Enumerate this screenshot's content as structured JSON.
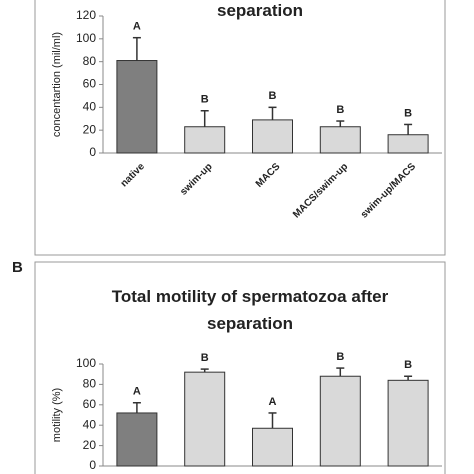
{
  "chart_data": [
    {
      "type": "bar",
      "title": "separation",
      "y_label": "concentartion (mil/ml)",
      "categories": [
        "native",
        "swim-up",
        "MACS",
        "MACS/swim-up",
        "swim-up/MACS"
      ],
      "values": [
        81,
        23,
        29,
        23,
        16
      ],
      "errors": [
        20,
        14,
        11,
        5,
        9
      ],
      "annotations": [
        "A",
        "B",
        "B",
        "B",
        "B"
      ],
      "colors": [
        "#7f7f7f",
        "#d9d9d9",
        "#d9d9d9",
        "#d9d9d9",
        "#d9d9d9"
      ],
      "ylim": [
        0,
        120
      ],
      "yticks": [
        0,
        20,
        40,
        60,
        80,
        100,
        120
      ]
    },
    {
      "type": "bar",
      "panel_label": "B",
      "title": "Total motility  of spermatozoa after separation",
      "y_label": "motility (%)",
      "categories": [
        null,
        null,
        null,
        null,
        null
      ],
      "values": [
        52,
        92,
        37,
        88,
        84
      ],
      "errors": [
        10,
        3,
        15,
        8,
        4
      ],
      "annotations": [
        "A",
        "B",
        "A",
        "B",
        "B"
      ],
      "colors": [
        "#7f7f7f",
        "#d9d9d9",
        "#d9d9d9",
        "#d9d9d9",
        "#d9d9d9"
      ],
      "ylim": [
        0,
        100
      ],
      "yticks": [
        0,
        20,
        40,
        60,
        80,
        100
      ]
    }
  ]
}
